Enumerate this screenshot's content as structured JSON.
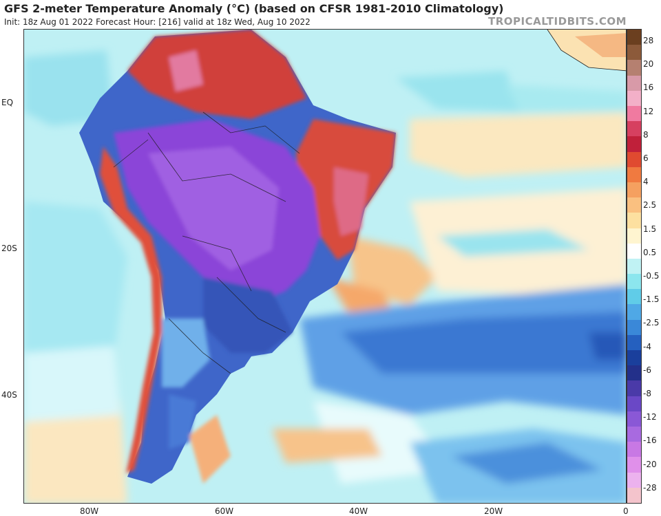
{
  "header": {
    "title": "GFS 2-meter Temperature Anomaly (°C) (based on CFSR 1981-2010 Climatology)",
    "subtitle": "Init: 18z Aug 01 2022   Forecast Hour: [216]   valid at 18z Wed, Aug 10 2022",
    "site": "TROPICALTIDBITS.COM"
  },
  "map": {
    "lat_labels": [
      "EQ",
      "20S",
      "40S"
    ],
    "lon_labels": [
      "80W",
      "60W",
      "40W",
      "20W",
      "0"
    ],
    "colors": {
      "ocean_light": "#bff0f4",
      "cold_deep": "#8a3cd6",
      "cold_purple": "#a35ee0",
      "cold_blue": "#3a5fc8",
      "cold_mid": "#5f9ee8",
      "warm_red": "#d8453a",
      "warm_pink": "#df6a8a",
      "warm_orange": "#f5b47a",
      "warm_pale": "#fbe3b4"
    }
  },
  "colorbar": {
    "labels": [
      "28",
      "20",
      "16",
      "12",
      "8",
      "6",
      "4",
      "2.5",
      "1.5",
      "0.5",
      "-0.5",
      "-1.5",
      "-2.5",
      "-4",
      "-6",
      "-8",
      "-12",
      "-16",
      "-20",
      "-28"
    ],
    "colors": [
      "#6b3f1f",
      "#8c5a3a",
      "#b58070",
      "#d89aa8",
      "#f3b0c8",
      "#f07aa0",
      "#d64060",
      "#c0203a",
      "#e04a30",
      "#f07a40",
      "#f5a060",
      "#fac080",
      "#fde0a0",
      "#fff5d0",
      "#ffffff",
      "#c0f2f4",
      "#8ce6ee",
      "#60cce8",
      "#4fa8e6",
      "#3a88d8",
      "#2560bf",
      "#1a3f9c",
      "#23308a",
      "#4a3aa8",
      "#6a48c6",
      "#8a58d6",
      "#a86ae0",
      "#c878e4",
      "#e090ea",
      "#ecb2ee",
      "#f4c4cc"
    ]
  }
}
